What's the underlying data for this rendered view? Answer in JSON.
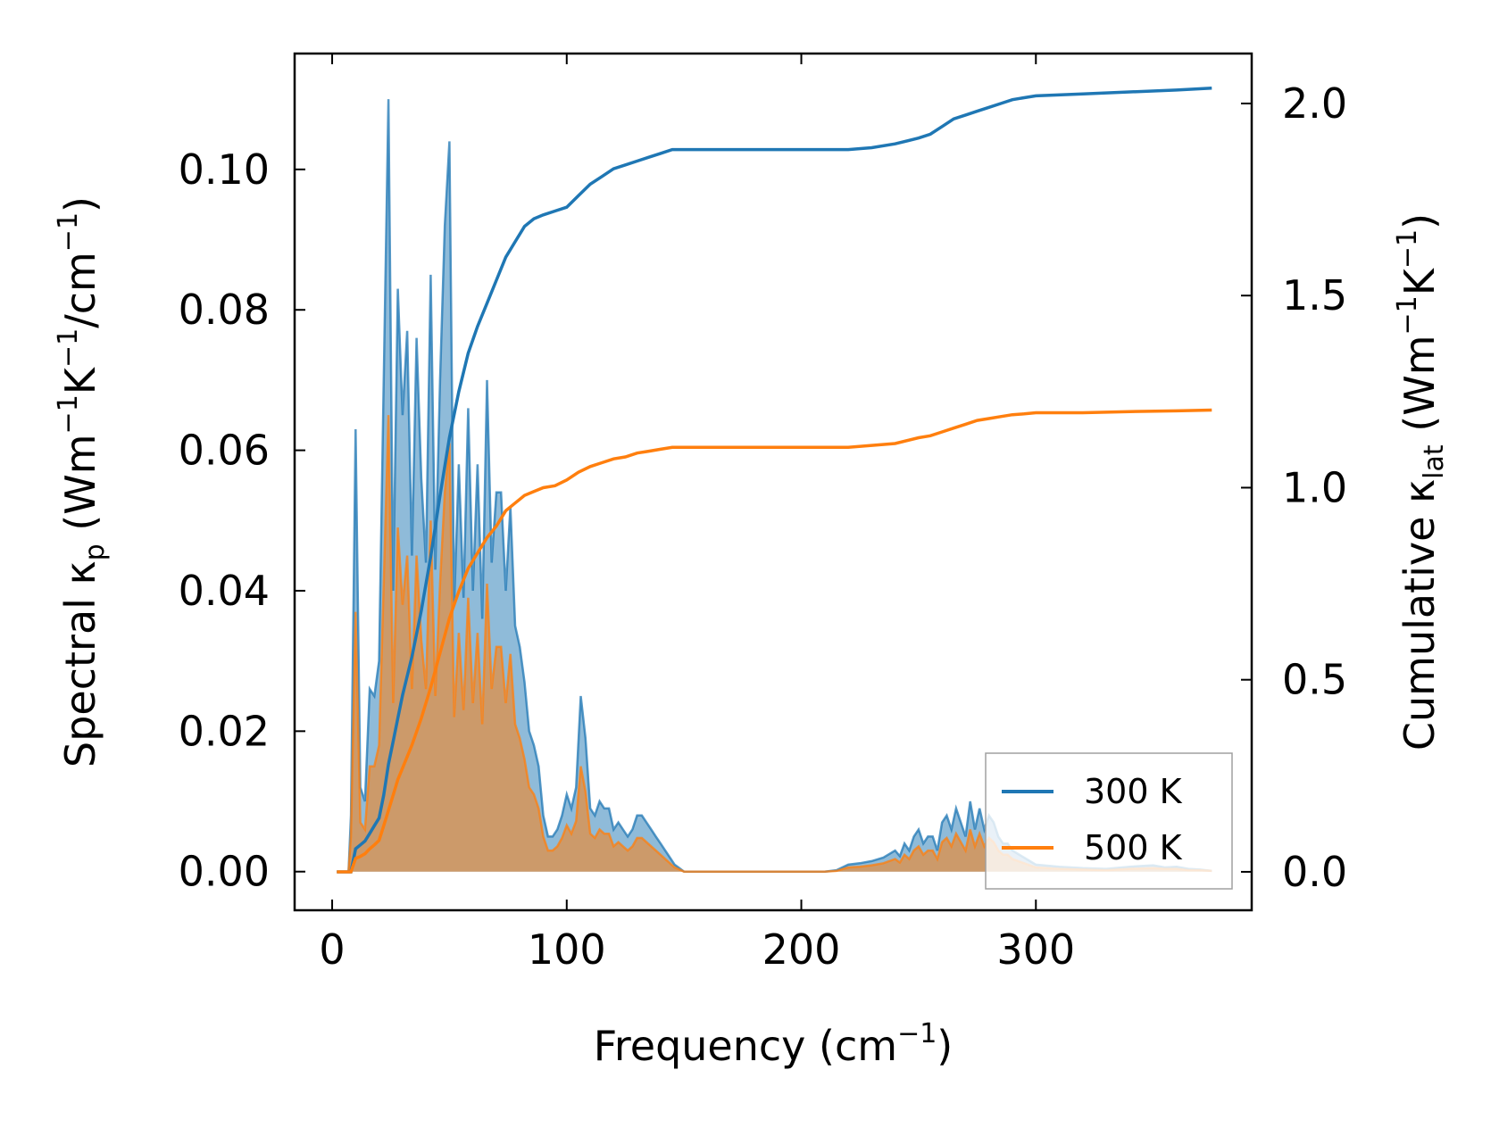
{
  "chart_data": {
    "type": "line",
    "xlabel": {
      "main": "Frequency (cm",
      "sup": "−1",
      "tail": ")"
    },
    "ylabel_left": {
      "pre": "Spectral κ",
      "sub": "p",
      "mid": " (Wm",
      "sup1": "−1",
      "k": "K",
      "sup2": "−1",
      "slash": "/cm",
      "sup3": "−1",
      "tail": ")"
    },
    "ylabel_right": {
      "pre": "Cumulative κ",
      "sub": "lat",
      "mid": " (Wm",
      "sup1": "−1",
      "k": "K",
      "sup2": "−1",
      "tail": ")"
    },
    "xlim": [
      -16,
      392
    ],
    "ylim_left": [
      -0.0055,
      0.1165
    ],
    "ylim_right": [
      -0.1,
      2.13
    ],
    "x_ticks": [
      0,
      100,
      200,
      300
    ],
    "x_tick_labels": [
      "0",
      "100",
      "200",
      "300"
    ],
    "y_left_ticks": [
      0.0,
      0.02,
      0.04,
      0.06,
      0.08,
      0.1
    ],
    "y_left_tick_labels": [
      "0.00",
      "0.02",
      "0.04",
      "0.06",
      "0.08",
      "0.10"
    ],
    "y_right_ticks": [
      0.0,
      0.5,
      1.0,
      1.5,
      2.0
    ],
    "y_right_tick_labels": [
      "0.0",
      "0.5",
      "1.0",
      "1.5",
      "2.0"
    ],
    "legend": {
      "placement": "lower-right"
    },
    "colors": {
      "c300": "#1f77b4",
      "c500": "#ff7f0e",
      "fill300": "#1f77b4",
      "fill500": "#ff7f0e"
    },
    "series": [
      {
        "name": "300 K",
        "color": "#1f77b4",
        "spectral": {
          "x": [
            2,
            5,
            7,
            8,
            10,
            12,
            14,
            16,
            18,
            20,
            22,
            24,
            26,
            28,
            30,
            32,
            34,
            36,
            38,
            40,
            42,
            44,
            46,
            48,
            50,
            52,
            54,
            56,
            58,
            60,
            62,
            64,
            66,
            68,
            70,
            72,
            74,
            76,
            78,
            80,
            82,
            84,
            86,
            88,
            90,
            92,
            94,
            96,
            98,
            100,
            102,
            104,
            106,
            108,
            110,
            112,
            114,
            116,
            118,
            120,
            122,
            124,
            126,
            128,
            130,
            132,
            134,
            136,
            138,
            140,
            142,
            144,
            146,
            148,
            150,
            160,
            180,
            200,
            210,
            215,
            220,
            225,
            230,
            235,
            240,
            242,
            244,
            246,
            248,
            250,
            252,
            254,
            256,
            258,
            260,
            262,
            264,
            266,
            268,
            270,
            272,
            274,
            276,
            278,
            280,
            282,
            284,
            286,
            288,
            290,
            295,
            300,
            310,
            320,
            330,
            340,
            350,
            355,
            360,
            365,
            370,
            375
          ],
          "y": [
            0,
            0,
            0,
            0.008,
            0.063,
            0.012,
            0.01,
            0.026,
            0.025,
            0.03,
            0.07,
            0.11,
            0.04,
            0.083,
            0.065,
            0.077,
            0.045,
            0.076,
            0.056,
            0.044,
            0.085,
            0.043,
            0.07,
            0.092,
            0.104,
            0.038,
            0.058,
            0.039,
            0.066,
            0.04,
            0.058,
            0.036,
            0.07,
            0.044,
            0.054,
            0.054,
            0.04,
            0.052,
            0.035,
            0.032,
            0.027,
            0.02,
            0.018,
            0.015,
            0.008,
            0.005,
            0.005,
            0.006,
            0.008,
            0.011,
            0.009,
            0.012,
            0.025,
            0.019,
            0.009,
            0.008,
            0.01,
            0.009,
            0.009,
            0.006,
            0.007,
            0.006,
            0.005,
            0.006,
            0.008,
            0.008,
            0.007,
            0.006,
            0.005,
            0.004,
            0.003,
            0.002,
            0.001,
            0.0005,
            0,
            0,
            0,
            0,
            0,
            0.0002,
            0.001,
            0.0012,
            0.0015,
            0.002,
            0.003,
            0.0022,
            0.004,
            0.003,
            0.005,
            0.006,
            0.004,
            0.005,
            0.005,
            0.003,
            0.007,
            0.008,
            0.006,
            0.009,
            0.007,
            0.005,
            0.01,
            0.006,
            0.009,
            0.006,
            0.008,
            0.007,
            0.005,
            0.004,
            0.004,
            0.003,
            0.002,
            0.001,
            0.0007,
            0.0005,
            0.0004,
            0.0007,
            0.0009,
            0.0006,
            0.0007,
            0.0004,
            0.0003,
            0.0001
          ]
        },
        "cumulative": {
          "x": [
            2,
            5,
            7,
            8,
            10,
            12,
            14,
            16,
            18,
            20,
            22,
            24,
            26,
            28,
            30,
            34,
            38,
            42,
            46,
            50,
            54,
            58,
            62,
            66,
            70,
            74,
            78,
            82,
            86,
            90,
            95,
            100,
            105,
            110,
            115,
            120,
            125,
            130,
            135,
            140,
            145,
            150,
            160,
            180,
            200,
            210,
            215,
            220,
            230,
            240,
            250,
            255,
            260,
            265,
            270,
            275,
            280,
            285,
            290,
            295,
            300,
            320,
            340,
            360,
            375
          ],
          "cumulative": [
            0,
            0,
            0,
            0.0,
            0.06,
            0.07,
            0.08,
            0.1,
            0.12,
            0.14,
            0.2,
            0.28,
            0.34,
            0.4,
            0.46,
            0.56,
            0.68,
            0.82,
            0.98,
            1.13,
            1.25,
            1.35,
            1.42,
            1.48,
            1.54,
            1.6,
            1.64,
            1.68,
            1.7,
            1.71,
            1.72,
            1.73,
            1.76,
            1.79,
            1.81,
            1.83,
            1.84,
            1.85,
            1.86,
            1.87,
            1.88,
            1.88,
            1.88,
            1.88,
            1.88,
            1.88,
            1.88,
            1.88,
            1.885,
            1.895,
            1.91,
            1.92,
            1.94,
            1.96,
            1.97,
            1.98,
            1.99,
            2.0,
            2.01,
            2.015,
            2.02,
            2.025,
            2.03,
            2.035,
            2.04
          ]
        }
      },
      {
        "name": "500 K",
        "color": "#ff7f0e",
        "spectral": {
          "x": [
            2,
            5,
            7,
            8,
            10,
            12,
            14,
            16,
            18,
            20,
            22,
            24,
            26,
            28,
            30,
            32,
            34,
            36,
            38,
            40,
            42,
            44,
            46,
            48,
            50,
            52,
            54,
            56,
            58,
            60,
            62,
            64,
            66,
            68,
            70,
            72,
            74,
            76,
            78,
            80,
            82,
            84,
            86,
            88,
            90,
            92,
            94,
            96,
            98,
            100,
            102,
            104,
            106,
            108,
            110,
            112,
            114,
            116,
            118,
            120,
            122,
            124,
            126,
            128,
            130,
            132,
            134,
            136,
            138,
            140,
            142,
            144,
            146,
            148,
            150,
            160,
            180,
            200,
            210,
            215,
            220,
            225,
            230,
            235,
            240,
            242,
            244,
            246,
            248,
            250,
            252,
            254,
            256,
            258,
            260,
            262,
            264,
            266,
            268,
            270,
            272,
            274,
            276,
            278,
            280,
            282,
            284,
            286,
            288,
            290,
            295,
            300,
            310,
            320,
            330,
            340,
            350,
            355,
            360,
            365,
            370,
            375
          ],
          "y": [
            0,
            0,
            0,
            0.005,
            0.037,
            0.007,
            0.006,
            0.015,
            0.015,
            0.018,
            0.041,
            0.065,
            0.024,
            0.049,
            0.038,
            0.045,
            0.026,
            0.045,
            0.033,
            0.026,
            0.05,
            0.025,
            0.041,
            0.054,
            0.061,
            0.022,
            0.034,
            0.023,
            0.039,
            0.024,
            0.034,
            0.021,
            0.041,
            0.026,
            0.032,
            0.032,
            0.024,
            0.031,
            0.021,
            0.019,
            0.016,
            0.012,
            0.011,
            0.009,
            0.005,
            0.003,
            0.003,
            0.0036,
            0.0048,
            0.0066,
            0.0054,
            0.0072,
            0.015,
            0.0114,
            0.0054,
            0.0048,
            0.006,
            0.0054,
            0.0054,
            0.0036,
            0.0042,
            0.0036,
            0.003,
            0.0036,
            0.0048,
            0.0048,
            0.0042,
            0.0036,
            0.003,
            0.0024,
            0.0018,
            0.0012,
            0.0006,
            0.0003,
            0,
            0,
            0,
            0,
            0,
            0.0001,
            0.0006,
            0.0007,
            0.0009,
            0.0012,
            0.0018,
            0.0013,
            0.0024,
            0.0018,
            0.003,
            0.0036,
            0.0024,
            0.003,
            0.003,
            0.0018,
            0.0042,
            0.0048,
            0.0036,
            0.0054,
            0.0042,
            0.003,
            0.006,
            0.0036,
            0.0054,
            0.0036,
            0.0048,
            0.0042,
            0.003,
            0.0024,
            0.0024,
            0.0018,
            0.0012,
            0.0006,
            0.0004,
            0.0003,
            0.0002,
            0.0004,
            0.0005,
            0.0004,
            0.0004,
            0.0002,
            0.0002,
            0.0001
          ]
        },
        "cumulative": {
          "x": [
            2,
            5,
            7,
            8,
            10,
            12,
            14,
            16,
            18,
            20,
            22,
            24,
            26,
            28,
            30,
            34,
            38,
            42,
            46,
            50,
            54,
            58,
            62,
            66,
            70,
            74,
            78,
            82,
            86,
            90,
            95,
            100,
            105,
            110,
            115,
            120,
            125,
            130,
            135,
            140,
            145,
            150,
            160,
            180,
            200,
            210,
            215,
            220,
            230,
            240,
            250,
            255,
            260,
            265,
            270,
            275,
            280,
            285,
            290,
            295,
            300,
            320,
            340,
            360,
            375
          ],
          "cumulative": [
            0,
            0,
            0,
            0.0,
            0.035,
            0.04,
            0.047,
            0.06,
            0.07,
            0.082,
            0.12,
            0.16,
            0.2,
            0.24,
            0.27,
            0.33,
            0.4,
            0.48,
            0.57,
            0.66,
            0.73,
            0.79,
            0.83,
            0.87,
            0.9,
            0.94,
            0.96,
            0.98,
            0.99,
            1.0,
            1.005,
            1.02,
            1.04,
            1.055,
            1.065,
            1.075,
            1.08,
            1.09,
            1.095,
            1.1,
            1.105,
            1.105,
            1.105,
            1.105,
            1.105,
            1.105,
            1.105,
            1.105,
            1.11,
            1.115,
            1.13,
            1.135,
            1.145,
            1.155,
            1.165,
            1.175,
            1.18,
            1.185,
            1.19,
            1.192,
            1.195,
            1.195,
            1.198,
            1.2,
            1.202
          ]
        }
      }
    ]
  }
}
